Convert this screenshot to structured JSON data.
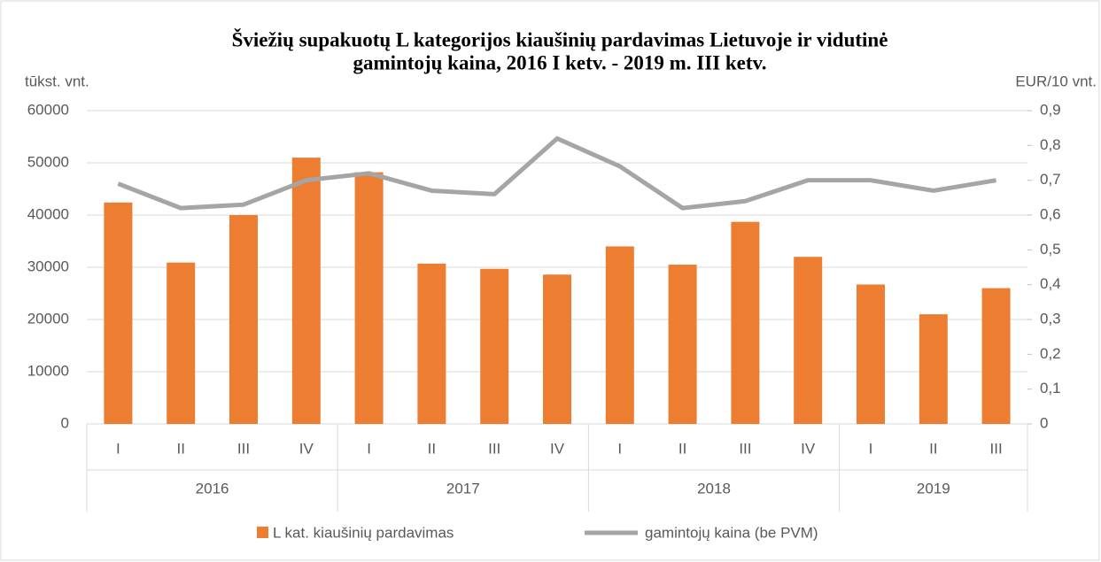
{
  "chart_data": {
    "type": "bar_line",
    "title_lines": [
      "Šviežių supakuotų L kategorijos kiaušinių pardavimas Lietuvoje ir vidutinė",
      "gamintojų kaina, 2016 I ketv. - 2019 m. III ketv."
    ],
    "y_label": "tūkst. vnt.",
    "y2_label": "EUR/10 vnt.",
    "category_groups": [
      {
        "label": "2016",
        "categories": [
          "I",
          "II",
          "III",
          "IV"
        ]
      },
      {
        "label": "2017",
        "categories": [
          "I",
          "II",
          "III",
          "IV"
        ]
      },
      {
        "label": "2018",
        "categories": [
          "I",
          "II",
          "III",
          "IV"
        ]
      },
      {
        "label": "2019",
        "categories": [
          "I",
          "II",
          "III"
        ]
      }
    ],
    "series": [
      {
        "name": "L kat. kiaušinių pardavimas",
        "type": "bar",
        "color": "#ed7d31",
        "values": [
          42400,
          30900,
          40000,
          51000,
          48200,
          30700,
          29700,
          28600,
          34000,
          30500,
          38700,
          32000,
          26700,
          21000,
          26000
        ]
      },
      {
        "name": "gamintojų kaina (be PVM)",
        "type": "line",
        "axis": "y2",
        "color": "#a5a5a5",
        "values": [
          0.69,
          0.62,
          0.63,
          0.7,
          0.72,
          0.67,
          0.66,
          0.82,
          0.74,
          0.62,
          0.64,
          0.7,
          0.7,
          0.67,
          0.7
        ]
      }
    ],
    "ylim": [
      0,
      60000
    ],
    "yticks": [
      0,
      10000,
      20000,
      30000,
      40000,
      50000,
      60000
    ],
    "y2lim": [
      0,
      0.9
    ],
    "y2ticks": [
      0,
      {
        "value": 0.1,
        "label": "0,1"
      },
      {
        "value": 0.2,
        "label": "0,2"
      },
      {
        "value": 0.3,
        "label": "0,3"
      },
      {
        "value": 0.4,
        "label": "0,4"
      },
      {
        "value": 0.5,
        "label": "0,5"
      },
      {
        "value": 0.6,
        "label": "0,6"
      },
      {
        "value": 0.7,
        "label": "0,7"
      },
      {
        "value": 0.8,
        "label": "0,8"
      },
      {
        "value": 0.9,
        "label": "0,9"
      }
    ],
    "grid": true,
    "legend": "bottom"
  }
}
